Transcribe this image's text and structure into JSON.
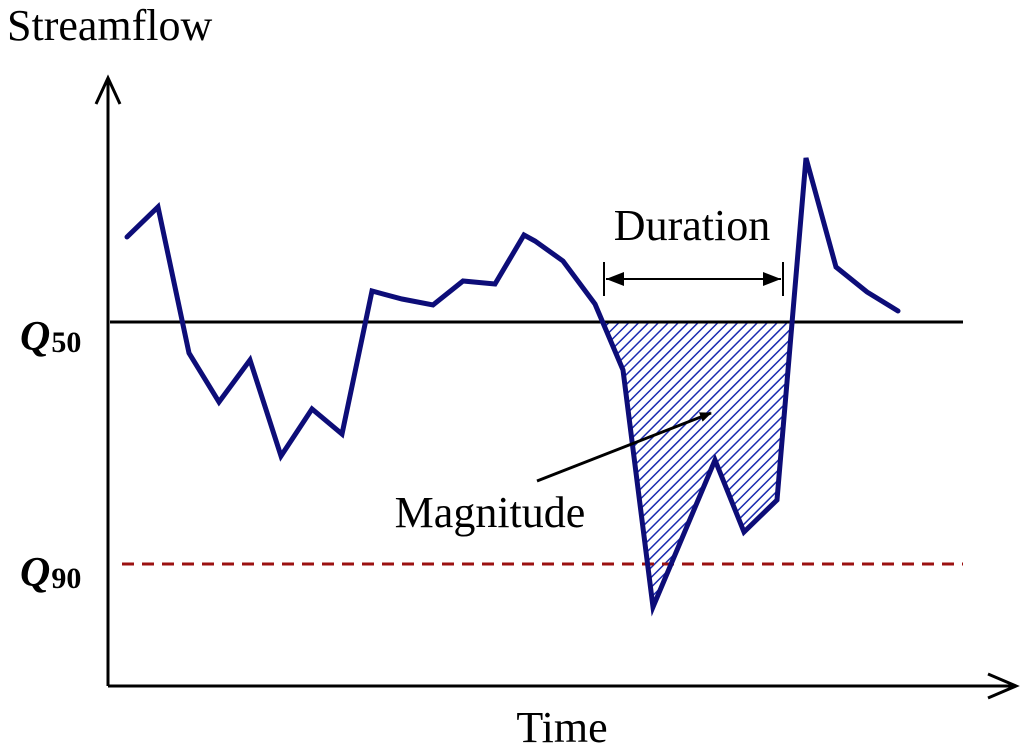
{
  "diagram": {
    "y_axis_label": "Streamflow",
    "x_axis_label": "Time",
    "q50": {
      "letter": "Q",
      "subscript": "50"
    },
    "q90": {
      "letter": "Q",
      "subscript": "90"
    },
    "duration_label": "Duration",
    "magnitude_label": "Magnitude"
  },
  "colors": {
    "streamflow_line": "#0d0d78",
    "q50_line": "#000000",
    "q90_line": "#9b1111",
    "deficit_hatch": "#1a2bb0",
    "axes": "#000000"
  }
}
